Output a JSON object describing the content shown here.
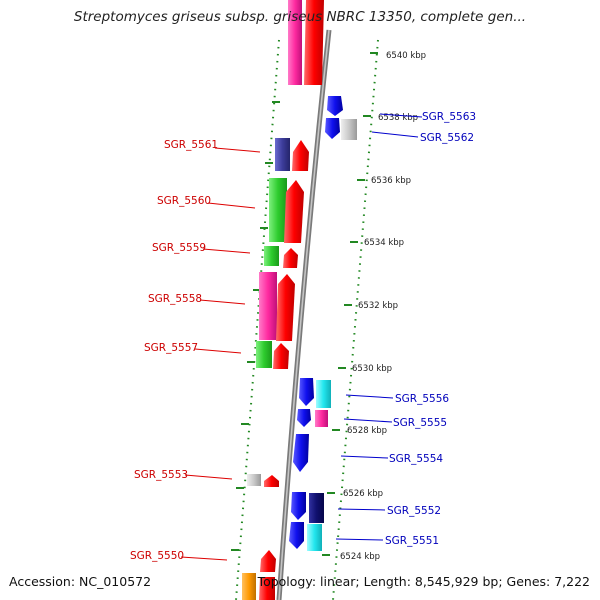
{
  "title": "Streptomyces griseus subsp. griseus NBRC 13350, complete gen...",
  "footer": {
    "accession": "Accession: NC_010572",
    "topology": "Topology: linear; Length: 8,545,929 bp; Genes: 7,222"
  },
  "scale_ticks": [
    "6540 kbp",
    "6538 kbp",
    "6536 kbp",
    "6534 kbp",
    "6532 kbp",
    "6530 kbp",
    "6528 kbp",
    "6526 kbp",
    "6524 kbp"
  ],
  "genes_left": [
    "SGR_5561",
    "SGR_5560",
    "SGR_5559",
    "SGR_5558",
    "SGR_5557",
    "SGR_5553",
    "SGR_5550"
  ],
  "genes_right": [
    "SGR_5563",
    "SGR_5562",
    "SGR_5556",
    "SGR_5555",
    "SGR_5554",
    "SGR_5552",
    "SGR_5551"
  ],
  "colors": {
    "left_label": "#cc0000",
    "right_label": "#0000bb",
    "backbone": "#888888",
    "scale_dots": "#228822"
  }
}
